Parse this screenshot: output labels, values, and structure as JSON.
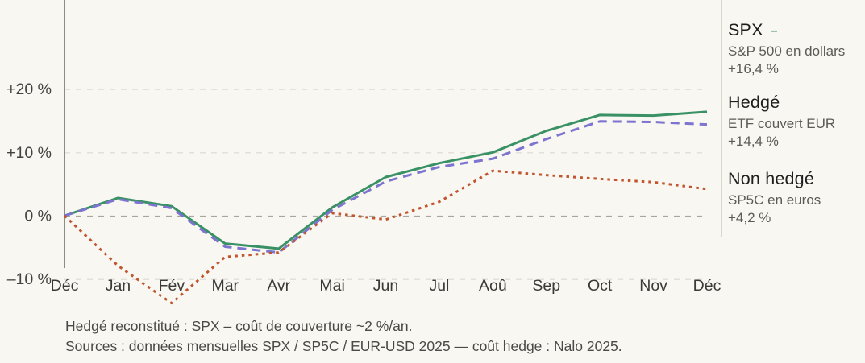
{
  "colors": {
    "background": "#f9f7f2",
    "grid": "#ddd9d1",
    "zero_line": "#a9a69f",
    "axis": "#8e8b85",
    "separator": "#d9d6ce",
    "spx_green": "#3a9165",
    "hedge_purple": "#7c74cf",
    "non_hedge_orange": "#c0552e"
  },
  "chart_data": {
    "type": "line",
    "title": "",
    "x": [
      "Déc",
      "Jan",
      "Fév",
      "Mar",
      "Avr",
      "Mai",
      "Jun",
      "Jul",
      "Aoû",
      "Sep",
      "Oct",
      "Nov",
      "Déc"
    ],
    "series": [
      {
        "name": "SPX",
        "color": "#3a9165",
        "style": "solid",
        "values": [
          0,
          2.8,
          1.5,
          -4.4,
          -5.2,
          1.3,
          6.1,
          8.3,
          10.0,
          13.4,
          15.9,
          15.8,
          16.4
        ]
      },
      {
        "name": "Hedgé",
        "color": "#7c74cf",
        "style": "dashed",
        "values": [
          0,
          2.6,
          1.2,
          -4.9,
          -5.8,
          0.9,
          5.4,
          7.7,
          9.0,
          12.1,
          14.9,
          14.8,
          14.4
        ]
      },
      {
        "name": "Non hedgé",
        "color": "#c0552e",
        "style": "dotted",
        "values": [
          0,
          -7.9,
          -13.8,
          -6.5,
          -5.8,
          0.4,
          -0.6,
          2.2,
          7.1,
          6.4,
          5.8,
          5.3,
          4.2
        ]
      }
    ],
    "yticks": [
      {
        "value": 20,
        "label": "+20 %"
      },
      {
        "value": 10,
        "label": "+10 %"
      },
      {
        "value": 0,
        "label": "0 %"
      },
      {
        "value": -10,
        "label": "–10 %"
      }
    ],
    "ylim": [
      -15,
      34
    ],
    "grid": true,
    "legend_position": "right"
  },
  "legend": {
    "items": [
      {
        "title": "SPX",
        "marker": "–",
        "marker_color": "#3a9165",
        "subtitle": "S&P 500 en dollars",
        "value": "+16,4 %"
      },
      {
        "title": "Hedgé",
        "subtitle": "ETF couvert EUR",
        "value": "+14,4 %"
      },
      {
        "title": "Non hedgé",
        "subtitle": "SP5C en euros",
        "value": "+4,2 %"
      }
    ]
  },
  "footnotes": [
    "Hedgé reconstitué : SPX – coût de couverture ~2 %/an.",
    "Sources : données mensuelles SPX / SP5C / EUR-USD 2025 — coût hedge : Nalo 2025."
  ]
}
